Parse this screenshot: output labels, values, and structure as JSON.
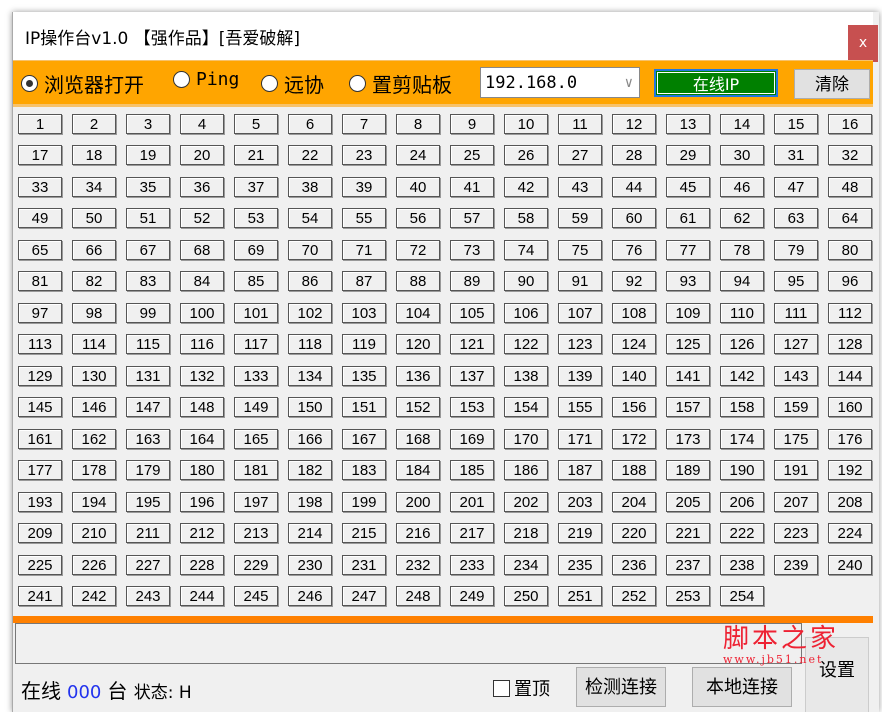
{
  "window": {
    "title": "IP操作台v1.0  【强作品】[吾爱破解]",
    "close_label": "x"
  },
  "toolbar": {
    "modes": [
      {
        "label": "浏览器打开",
        "selected": true
      },
      {
        "label": "Ping",
        "selected": false
      },
      {
        "label": "远协",
        "selected": false
      },
      {
        "label": "置剪贴板",
        "selected": false
      }
    ],
    "ip_prefix": "192.168.0",
    "online_ip_label": "在线IP",
    "clear_label": "清除",
    "online_color": "#008000",
    "accent_color": "#ffa500"
  },
  "ip_buttons_range": [
    1,
    254
  ],
  "log": {
    "value": ""
  },
  "watermark": {
    "line1": "脚本之家",
    "line2": "www.jb51.net"
  },
  "footer": {
    "online_label": "在线",
    "online_count": "000",
    "unit": "台",
    "status_label": "状态: H",
    "pin_label": "置顶",
    "detect_label": "检测连接",
    "local_label": "本地连接",
    "settings_label": "设置"
  }
}
